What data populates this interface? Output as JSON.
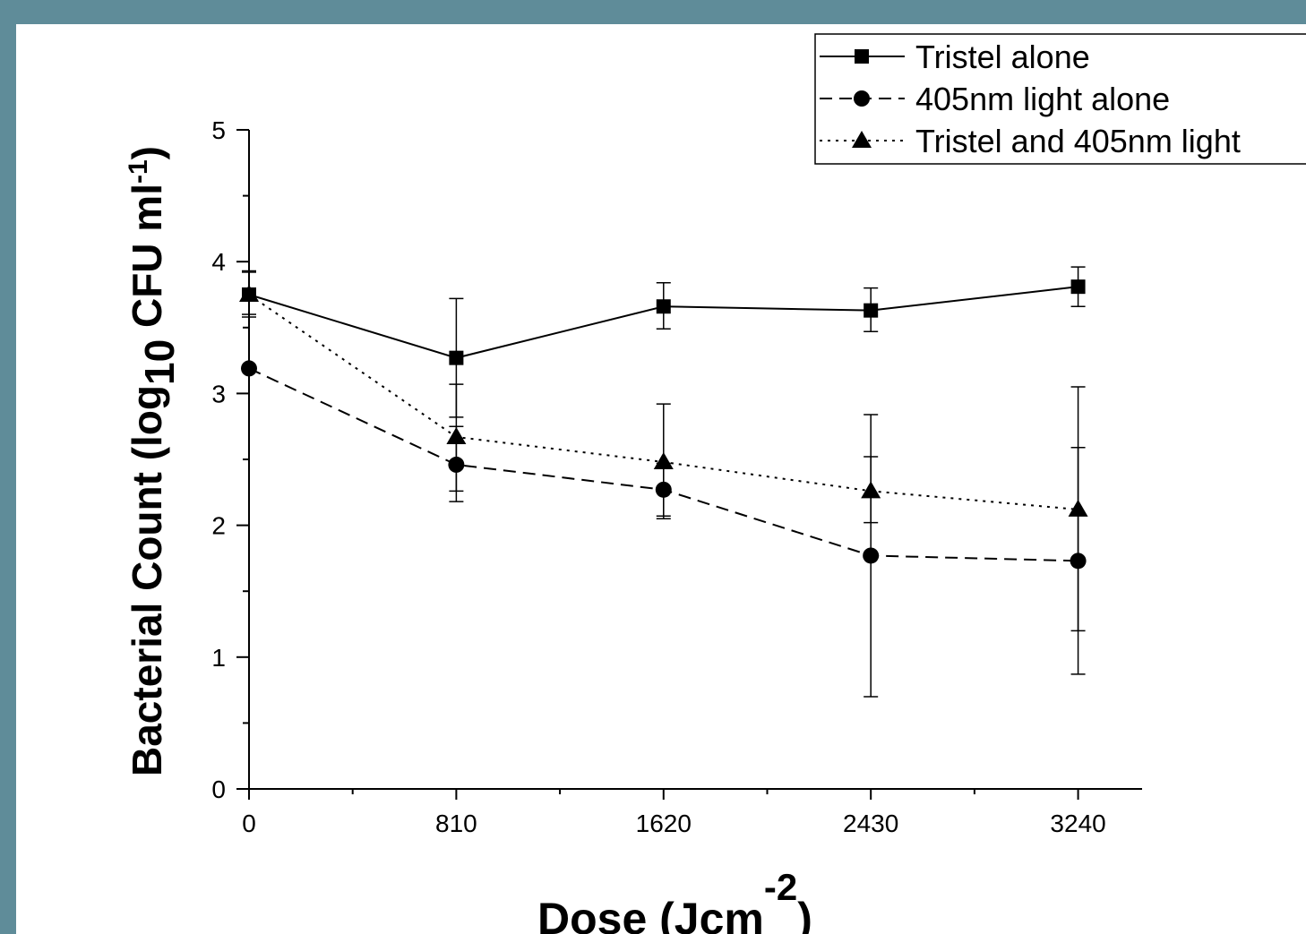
{
  "page": {
    "background_color": "#5f8c99",
    "panel_color": "#ffffff"
  },
  "chart_data": {
    "type": "line",
    "title": "",
    "xlabel": {
      "text": "Dose (Jcm",
      "superscript": "-2",
      "suffix": ")"
    },
    "ylabel": {
      "prefix": "Bacterial Count (log",
      "subscript": "10",
      "middle": " CFU ml",
      "superscript": "-1",
      "suffix": ")"
    },
    "x": [
      0,
      810,
      1620,
      2430,
      3240
    ],
    "x_tick_labels": [
      "0",
      "810",
      "1620",
      "2430",
      "3240"
    ],
    "xlim": [
      0,
      3490
    ],
    "ylim": [
      0,
      5
    ],
    "y_ticks": [
      0,
      1,
      2,
      3,
      4,
      5
    ],
    "y_tick_labels": [
      "0",
      "1",
      "2",
      "3",
      "4",
      "5"
    ],
    "grid": false,
    "legend_position": "top-right",
    "series": [
      {
        "name": "Tristel alone",
        "marker": "square",
        "line_style": "solid",
        "values": [
          3.75,
          3.27,
          3.66,
          3.63,
          3.81
        ],
        "err_low": [
          3.6,
          2.82,
          3.49,
          3.47,
          3.66
        ],
        "err_high": [
          3.93,
          3.72,
          3.84,
          3.8,
          3.96
        ]
      },
      {
        "name": "405nm light alone",
        "marker": "circle",
        "line_style": "dashed",
        "values": [
          3.19,
          2.46,
          2.27,
          1.77,
          1.73
        ],
        "err_low": [
          3.19,
          2.18,
          2.07,
          0.7,
          0.87
        ],
        "err_high": [
          3.19,
          2.75,
          2.47,
          2.84,
          2.59
        ]
      },
      {
        "name": "Tristel and 405nm light",
        "marker": "triangle",
        "line_style": "dotted",
        "values": [
          3.75,
          2.67,
          2.48,
          2.26,
          2.12
        ],
        "err_low": [
          3.58,
          2.26,
          2.05,
          2.02,
          1.2
        ],
        "err_high": [
          3.92,
          3.07,
          2.92,
          2.52,
          3.05
        ]
      }
    ]
  }
}
